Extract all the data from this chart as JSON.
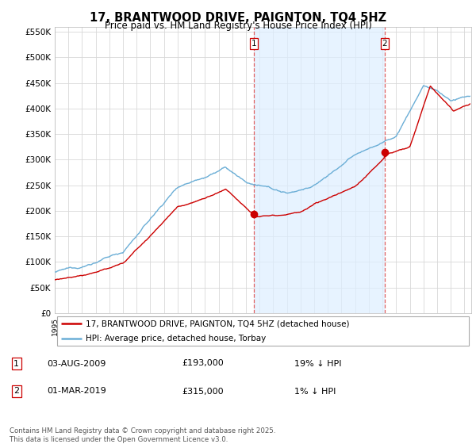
{
  "title": "17, BRANTWOOD DRIVE, PAIGNTON, TQ4 5HZ",
  "subtitle": "Price paid vs. HM Land Registry's House Price Index (HPI)",
  "legend_entries": [
    "17, BRANTWOOD DRIVE, PAIGNTON, TQ4 5HZ (detached house)",
    "HPI: Average price, detached house, Torbay"
  ],
  "transaction1": {
    "label": "1",
    "date": "03-AUG-2009",
    "price": "£193,000",
    "hpi": "19% ↓ HPI"
  },
  "transaction2": {
    "label": "2",
    "date": "01-MAR-2019",
    "price": "£315,000",
    "hpi": "1% ↓ HPI"
  },
  "vline1_x": 2009.58,
  "vline2_x": 2019.17,
  "dot1_x": 2009.58,
  "dot1_y": 193000,
  "dot2_x": 2019.17,
  "dot2_y": 315000,
  "ylim": [
    0,
    560000
  ],
  "xlim": [
    1995.0,
    2025.5
  ],
  "hpi_color": "#6baed6",
  "price_color": "#cc0000",
  "vline_color": "#e06060",
  "shade_color": "#ddeeff",
  "background_color": "#ffffff",
  "grid_color": "#d8d8d8",
  "footer": "Contains HM Land Registry data © Crown copyright and database right 2025.\nThis data is licensed under the Open Government Licence v3.0."
}
